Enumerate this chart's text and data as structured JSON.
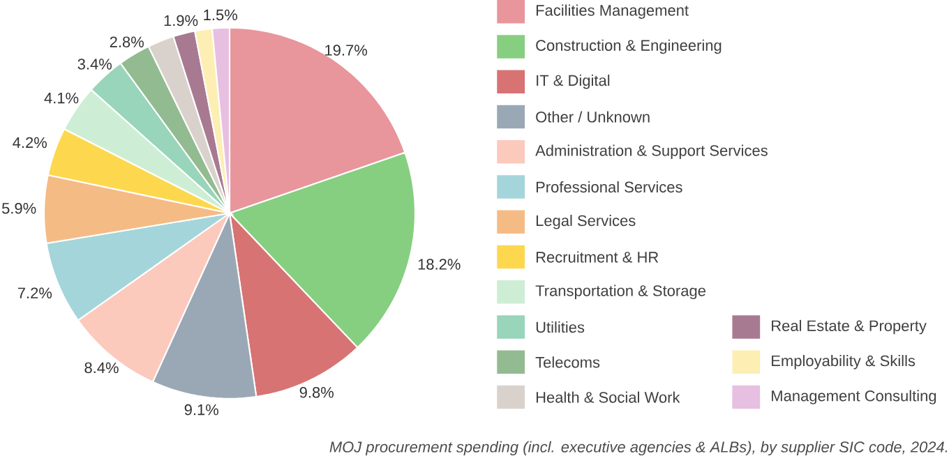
{
  "chart_data": {
    "type": "pie",
    "categories": [
      "Facilities Management",
      "Construction & Engineering",
      "IT & Digital",
      "Other / Unknown",
      "Administration & Support Services",
      "Professional Services",
      "Legal Services",
      "Recruitment & HR",
      "Transportation & Storage",
      "Utilities",
      "Telecoms",
      "Health & Social Work",
      "Real Estate & Property",
      "Employability & Skills",
      "Management Consulting"
    ],
    "values": [
      19.7,
      18.2,
      9.8,
      9.1,
      8.4,
      7.2,
      5.9,
      4.2,
      4.1,
      3.4,
      2.8,
      2.3,
      1.9,
      1.5,
      1.5
    ],
    "value_labels": [
      "19.7%",
      "18.2%",
      "9.8%",
      "9.1%",
      "8.4%",
      "7.2%",
      "5.9%",
      "4.2%",
      "4.1%",
      "3.4%",
      "2.8%",
      null,
      "1.9%",
      null,
      "1.5%"
    ],
    "colors": [
      "#e8959c",
      "#86cf80",
      "#d87373",
      "#9aa8b6",
      "#fcc9bd",
      "#a4d5da",
      "#f5bb85",
      "#fdd84f",
      "#cdeed4",
      "#98d5bb",
      "#93bb91",
      "#d9d2cc",
      "#a87a92",
      "#fdeeb3",
      "#e7bfe1"
    ],
    "legend": "right",
    "annotations": [
      "MOJ procurement spending (incl. executive agencies & ALBs), by supplier SIC code, 2024."
    ]
  }
}
